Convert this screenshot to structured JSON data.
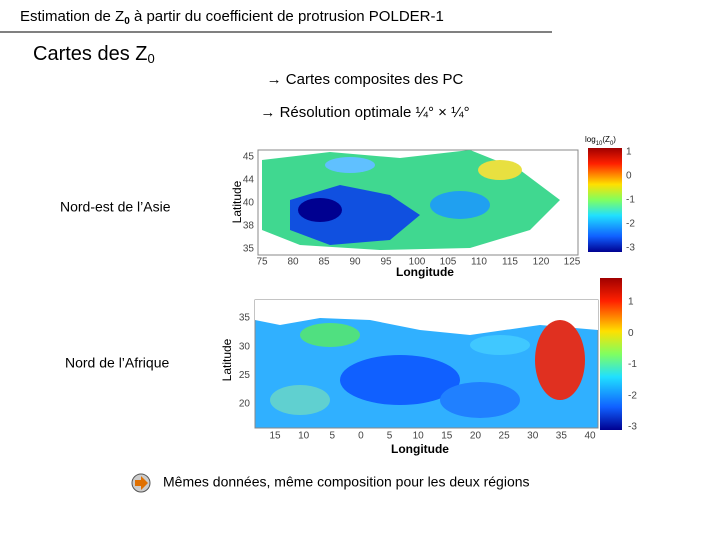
{
  "header": {
    "title_parts": [
      "Estimation de Z",
      "0",
      " à partir du coefficient de protrusion POLDER-1"
    ]
  },
  "section": {
    "title_parts": [
      "Cartes des Z",
      "0"
    ]
  },
  "bullets": [
    "→ Cartes composites des PC",
    "→ Résolution optimale ¼° × ¼°"
  ],
  "maps": [
    {
      "label": "Nord-est de l’Asie",
      "x_axis": "Longitude",
      "y_axis": "Latitude",
      "x_ticks": [
        "75",
        "80",
        "85",
        "90",
        "95",
        "100",
        "105",
        "110",
        "115",
        "120",
        "125"
      ],
      "y_ticks": [
        "45",
        "44",
        "40",
        "38",
        "35"
      ],
      "colorbar_title_parts": [
        "log",
        "10",
        "(Z",
        "0",
        ")"
      ],
      "colorbar_ticks": [
        "1",
        "0",
        "-1",
        "-2",
        "-3"
      ]
    },
    {
      "label": "Nord de l’Afrique",
      "x_axis": "Longitude",
      "y_axis": "Latitude",
      "x_ticks": [
        "15",
        "10",
        "5",
        "0",
        "5",
        "10",
        "15",
        "20",
        "25",
        "30",
        "35",
        "40"
      ],
      "y_ticks": [
        "35",
        "30",
        "25",
        "20"
      ],
      "colorbar_ticks": [
        "1",
        "0",
        "-1",
        "-2",
        "-3"
      ]
    }
  ],
  "note": "Mêmes données, même composition pour les deux régions"
}
